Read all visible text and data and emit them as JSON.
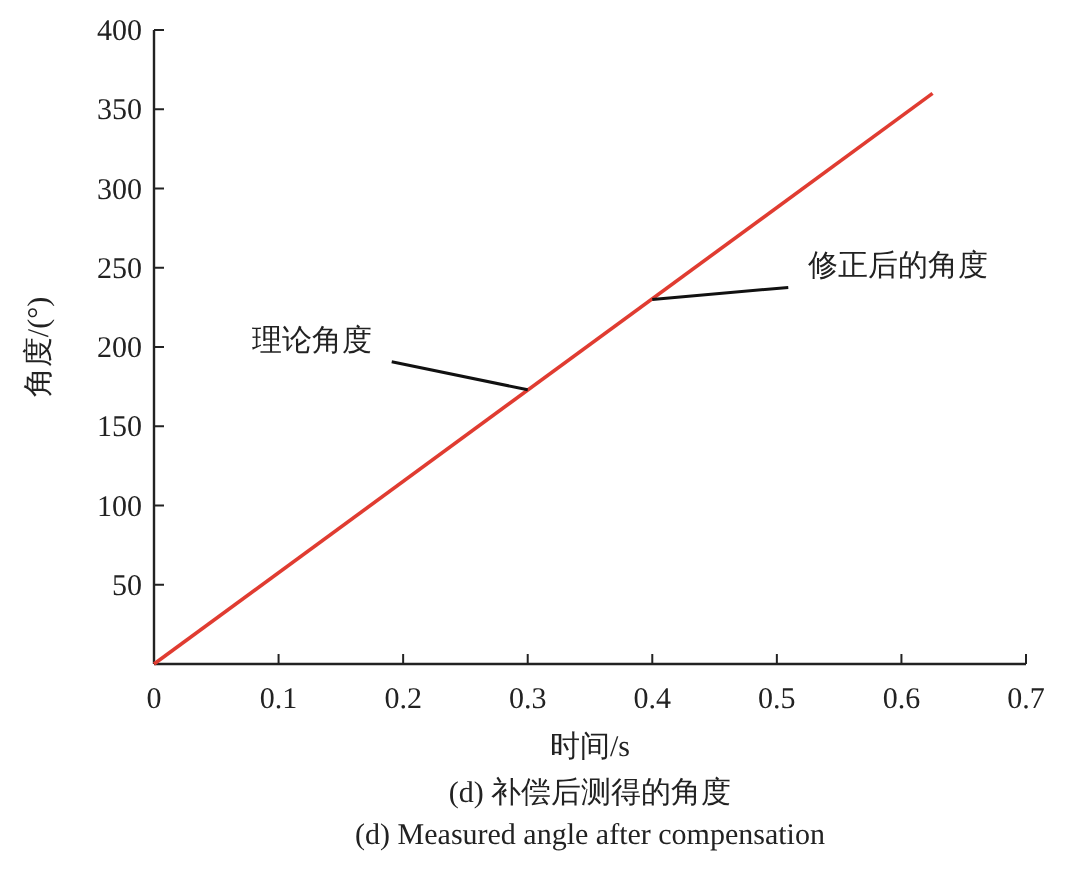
{
  "chart_data": {
    "type": "line",
    "title": "(d) 补偿后测得的角度",
    "subtitle": "(d) Measured angle after compensation",
    "xlabel": "时间/s",
    "ylabel": "角度/(°)",
    "x": [
      0,
      0.625
    ],
    "series": [
      {
        "color": "#e03c31",
        "values": [
          0,
          360
        ]
      }
    ],
    "xlim": [
      0,
      0.7
    ],
    "xticks": [
      0,
      0.1,
      0.2,
      0.3,
      0.4,
      0.5,
      0.6,
      0.7
    ],
    "ylim": [
      0,
      400
    ],
    "yticks": [
      {
        "value": 0,
        "label": null
      },
      50,
      100,
      150,
      200,
      250,
      300,
      350,
      400
    ],
    "grid": false,
    "marker": "none",
    "line_style": "solid",
    "annotations": [
      {
        "text": "理论角度",
        "x": 0.3,
        "y": 173
      },
      {
        "text": "修正后的角度",
        "x": 0.4,
        "y": 230
      }
    ]
  }
}
